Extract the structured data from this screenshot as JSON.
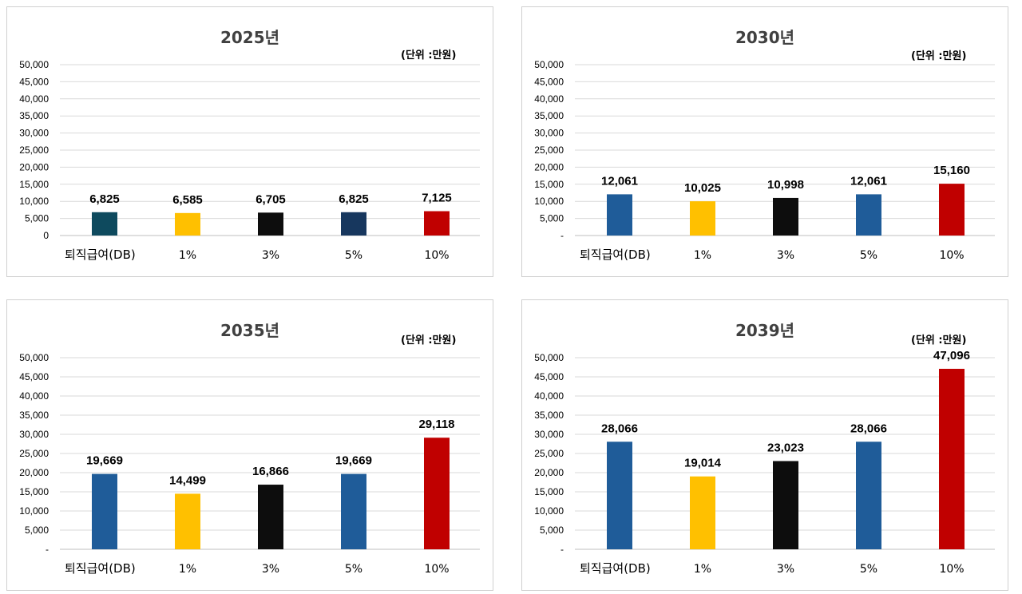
{
  "unit_label": "(단위 :만원)",
  "chart_data": [
    {
      "type": "bar",
      "title": "2025년",
      "categories": [
        "퇴직급여(DB)",
        "1%",
        "3%",
        "5%",
        "10%"
      ],
      "values": [
        6825,
        6585,
        6705,
        6825,
        7125
      ],
      "value_labels": [
        "6,825",
        "6,585",
        "6,705",
        "6,825",
        "7,125"
      ],
      "colors": [
        "#0e4a5e",
        "#ffc000",
        "#0d0d0d",
        "#17375e",
        "#c00000"
      ],
      "ylim": [
        0,
        50000
      ],
      "yticks": [
        "0",
        "5,000",
        "10,000",
        "15,000",
        "20,000",
        "25,000",
        "30,000",
        "35,000",
        "40,000",
        "45,000",
        "50,000"
      ],
      "grid": true
    },
    {
      "type": "bar",
      "title": "2030년",
      "categories": [
        "퇴직급여(DB)",
        "1%",
        "3%",
        "5%",
        "10%"
      ],
      "values": [
        12061,
        10025,
        10998,
        12061,
        15160
      ],
      "value_labels": [
        "12,061",
        "10,025",
        "10,998",
        "12,061",
        "15,160"
      ],
      "colors": [
        "#1f5c99",
        "#ffc000",
        "#0d0d0d",
        "#1f5c99",
        "#c00000"
      ],
      "ylim": [
        0,
        50000
      ],
      "yticks": [
        "-",
        "5,000",
        "10,000",
        "15,000",
        "20,000",
        "25,000",
        "30,000",
        "35,000",
        "40,000",
        "45,000",
        "50,000"
      ],
      "grid": true
    },
    {
      "type": "bar",
      "title": "2035년",
      "categories": [
        "퇴직급여(DB)",
        "1%",
        "3%",
        "5%",
        "10%"
      ],
      "values": [
        19669,
        14499,
        16866,
        19669,
        29118
      ],
      "value_labels": [
        "19,669",
        "14,499",
        "16,866",
        "19,669",
        "29,118"
      ],
      "colors": [
        "#1f5c99",
        "#ffc000",
        "#0d0d0d",
        "#1f5c99",
        "#c00000"
      ],
      "ylim": [
        0,
        50000
      ],
      "yticks": [
        "-",
        "5,000",
        "10,000",
        "15,000",
        "20,000",
        "25,000",
        "30,000",
        "35,000",
        "40,000",
        "45,000",
        "50,000"
      ],
      "grid": true
    },
    {
      "type": "bar",
      "title": "2039년",
      "categories": [
        "퇴직급여(DB)",
        "1%",
        "3%",
        "5%",
        "10%"
      ],
      "values": [
        28066,
        19014,
        23023,
        28066,
        47096
      ],
      "value_labels": [
        "28,066",
        "19,014",
        "23,023",
        "28,066",
        "47,096"
      ],
      "colors": [
        "#1f5c99",
        "#ffc000",
        "#0d0d0d",
        "#1f5c99",
        "#c00000"
      ],
      "ylim": [
        0,
        50000
      ],
      "yticks": [
        "-",
        "5,000",
        "10,000",
        "15,000",
        "20,000",
        "25,000",
        "30,000",
        "35,000",
        "40,000",
        "45,000",
        "50,000"
      ],
      "grid": true
    }
  ]
}
